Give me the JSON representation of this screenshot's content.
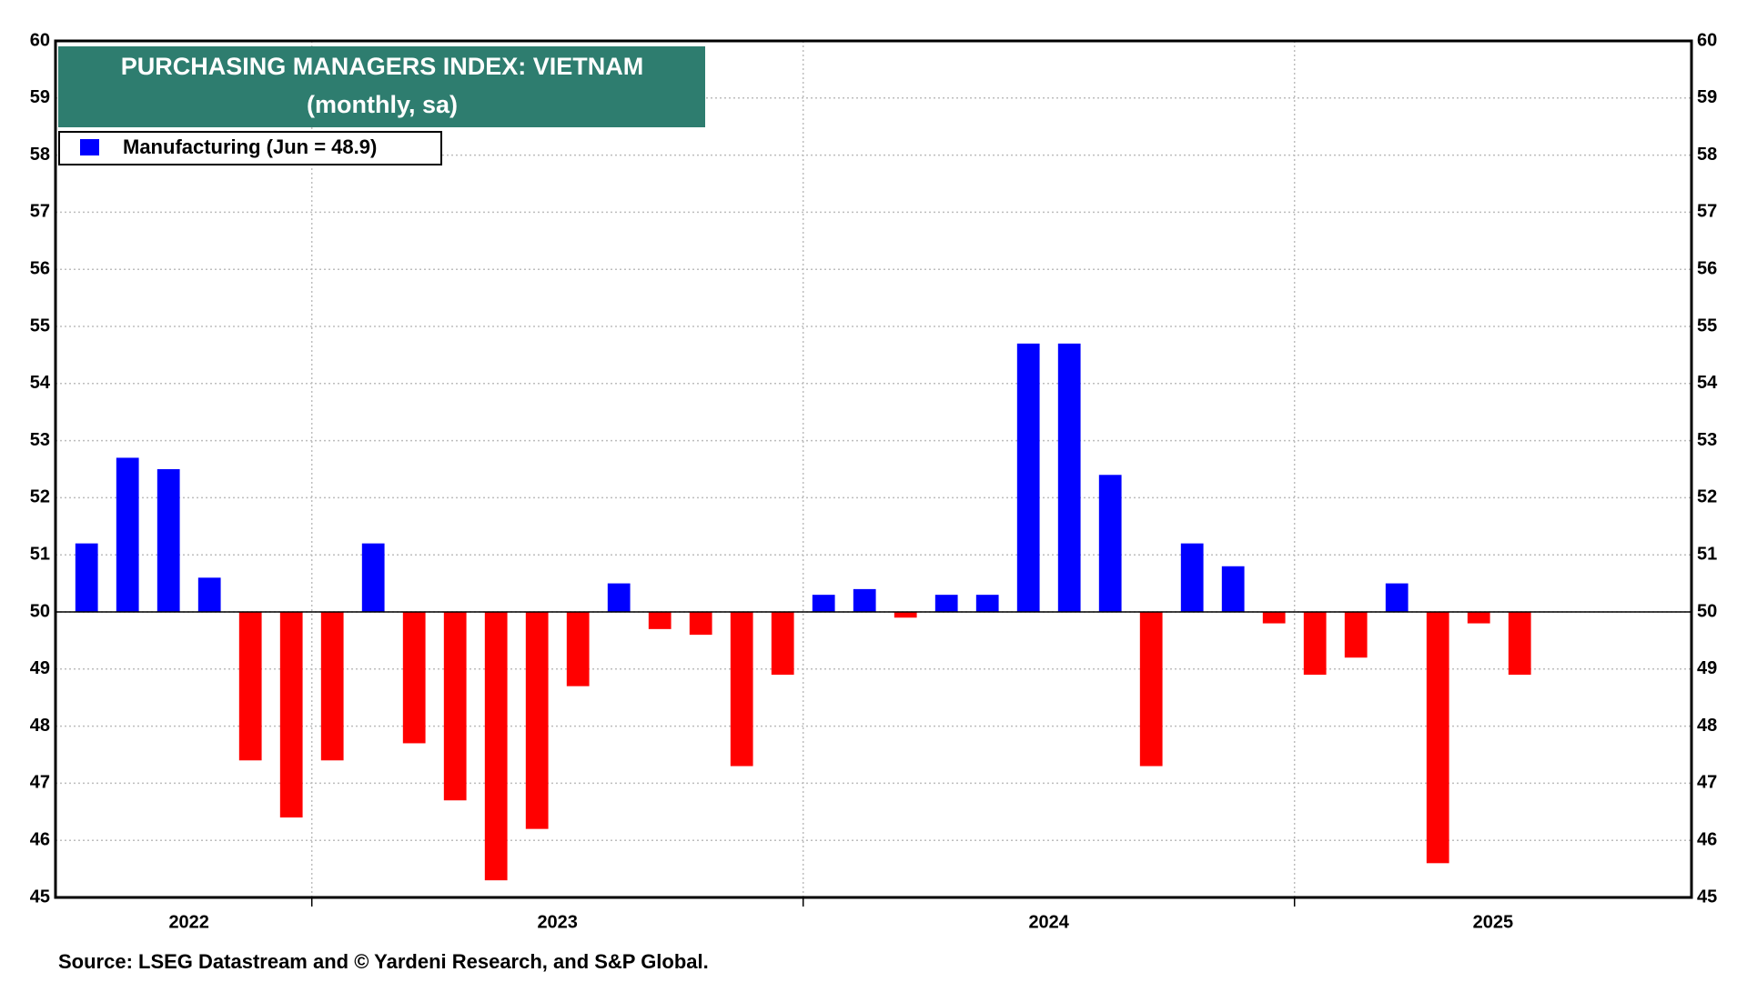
{
  "chart_data": {
    "type": "bar",
    "title": "PURCHASING MANAGERS INDEX: VIETNAM",
    "subtitle": "(monthly, sa)",
    "source": "Source: LSEG Datastream and © Yardeni Research, and S&P Global.",
    "year_labels": [
      "2022",
      "2023",
      "2024",
      "2025"
    ],
    "series": [
      {
        "name": "Manufacturing (Jun = 48.9)",
        "color": "#0000ff",
        "color_below": "#ff0000",
        "values": [
          51.2,
          52.7,
          52.5,
          50.6,
          47.4,
          46.4,
          47.4,
          51.2,
          47.7,
          46.7,
          45.3,
          46.2,
          48.7,
          50.5,
          49.7,
          49.6,
          47.3,
          48.9,
          50.3,
          50.4,
          49.9,
          50.3,
          50.3,
          54.7,
          54.7,
          52.4,
          47.3,
          51.2,
          50.8,
          49.8,
          48.9,
          49.2,
          50.5,
          45.6,
          49.8,
          48.9
        ]
      }
    ],
    "reference_line": 50,
    "ylim": [
      45,
      60
    ],
    "yticks": [
      45,
      46,
      47,
      48,
      49,
      50,
      51,
      52,
      53,
      54,
      55,
      56,
      57,
      58,
      59,
      60
    ],
    "grid": true,
    "title_box_color": "#2e7d6f"
  }
}
